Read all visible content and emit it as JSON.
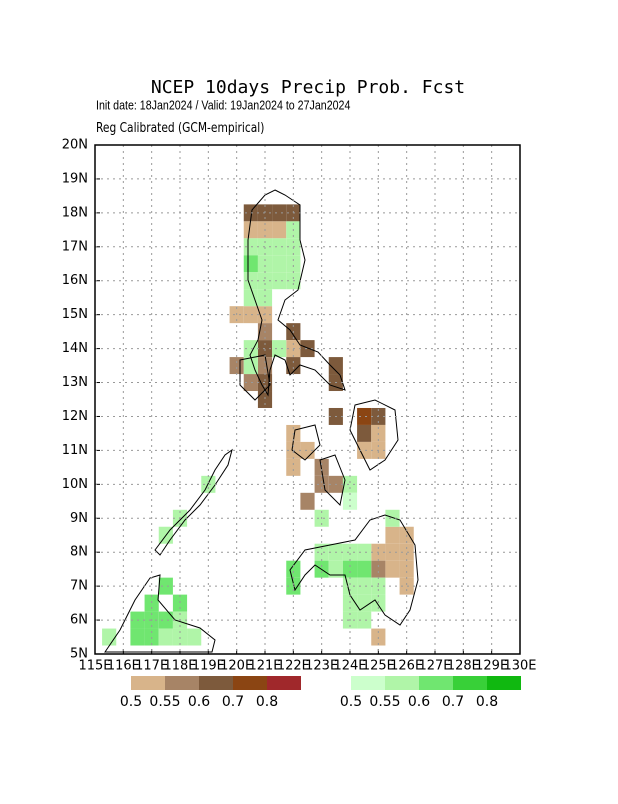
{
  "chart_data": {
    "type": "map",
    "title": "NCEP 10days Precip Prob. Fcst",
    "subtitle": "Init date: 18Jan2024 / Valid: 19Jan2024 to 27Jan2024",
    "note": "Reg Calibrated (GCM-empirical)",
    "xlim": [
      115,
      130
    ],
    "ylim": [
      5,
      20
    ],
    "grid": true,
    "xticks": [
      {
        "value": 115,
        "label": "115E"
      },
      {
        "value": 116,
        "label": "116E"
      },
      {
        "value": 117,
        "label": "117E"
      },
      {
        "value": 118,
        "label": "118E"
      },
      {
        "value": 119,
        "label": "119E"
      },
      {
        "value": 120,
        "label": "120E"
      },
      {
        "value": 121,
        "label": "121E"
      },
      {
        "value": 122,
        "label": "122E"
      },
      {
        "value": 123,
        "label": "123E"
      },
      {
        "value": 124,
        "label": "124E"
      },
      {
        "value": 125,
        "label": "125E"
      },
      {
        "value": 126,
        "label": "126E"
      },
      {
        "value": 127,
        "label": "127E"
      },
      {
        "value": 128,
        "label": "128E"
      },
      {
        "value": 129,
        "label": "129E"
      },
      {
        "value": 130,
        "label": "130E"
      }
    ],
    "yticks": [
      {
        "value": 5,
        "label": "5N"
      },
      {
        "value": 6,
        "label": "6N"
      },
      {
        "value": 7,
        "label": "7N"
      },
      {
        "value": 8,
        "label": "8N"
      },
      {
        "value": 9,
        "label": "9N"
      },
      {
        "value": 10,
        "label": "10N"
      },
      {
        "value": 11,
        "label": "11N"
      },
      {
        "value": 12,
        "label": "12N"
      },
      {
        "value": 13,
        "label": "13N"
      },
      {
        "value": 14,
        "label": "14N"
      },
      {
        "value": 15,
        "label": "15N"
      },
      {
        "value": 16,
        "label": "16N"
      },
      {
        "value": 17,
        "label": "17N"
      },
      {
        "value": 18,
        "label": "18N"
      },
      {
        "value": 19,
        "label": "19N"
      },
      {
        "value": 20,
        "label": "20N"
      }
    ],
    "dry": {
      "levels": [
        0.5,
        0.55,
        0.6,
        0.7,
        0.8
      ],
      "colors": [
        "#d8b48a",
        "#a78466",
        "#7d5a3c",
        "#8b4513",
        "#a0282b"
      ],
      "cells": [
        [
          120.5,
          18,
          0.65
        ],
        [
          121,
          18,
          0.65
        ],
        [
          121.5,
          18,
          0.65
        ],
        [
          122,
          18,
          0.65
        ],
        [
          120.5,
          17.5,
          0.52
        ],
        [
          121,
          17.5,
          0.52
        ],
        [
          121.5,
          17.5,
          0.52
        ],
        [
          120,
          15,
          0.52
        ],
        [
          120.5,
          15,
          0.52
        ],
        [
          121,
          15,
          0.52
        ],
        [
          121,
          14.5,
          0.57
        ],
        [
          122,
          14.5,
          0.65
        ],
        [
          121,
          14,
          0.65
        ],
        [
          122,
          14,
          0.52
        ],
        [
          122.5,
          14,
          0.65
        ],
        [
          120,
          13.5,
          0.57
        ],
        [
          121,
          13.5,
          0.57
        ],
        [
          122,
          13.5,
          0.65
        ],
        [
          123.5,
          13.5,
          0.65
        ],
        [
          120.5,
          13,
          0.57
        ],
        [
          121,
          13,
          0.65
        ],
        [
          123.5,
          13,
          0.65
        ],
        [
          121,
          12.5,
          0.65
        ],
        [
          123.5,
          12,
          0.65
        ],
        [
          124.5,
          12,
          0.75
        ],
        [
          125,
          12,
          0.65
        ],
        [
          122,
          11.5,
          0.52
        ],
        [
          124.5,
          11.5,
          0.65
        ],
        [
          125,
          11.5,
          0.52
        ],
        [
          122,
          11,
          0.52
        ],
        [
          122.5,
          11,
          0.52
        ],
        [
          124.5,
          11,
          0.52
        ],
        [
          125,
          11,
          0.52
        ],
        [
          122,
          10.5,
          0.52
        ],
        [
          123,
          10.5,
          0.57
        ],
        [
          123,
          10,
          0.57
        ],
        [
          123.5,
          10,
          0.57
        ],
        [
          122.5,
          9.5,
          0.57
        ],
        [
          125.5,
          8.5,
          0.52
        ],
        [
          126,
          8.5,
          0.52
        ],
        [
          125,
          8,
          0.52
        ],
        [
          125.5,
          8,
          0.52
        ],
        [
          126,
          8,
          0.52
        ],
        [
          125,
          7.5,
          0.57
        ],
        [
          125.5,
          7.5,
          0.52
        ],
        [
          126,
          7.5,
          0.52
        ],
        [
          126,
          7,
          0.52
        ],
        [
          125,
          5.5,
          0.52
        ]
      ]
    },
    "wet": {
      "levels": [
        0.5,
        0.55,
        0.6,
        0.7,
        0.8
      ],
      "colors": [
        "#ccffcc",
        "#b0f5a8",
        "#70e670",
        "#38d038",
        "#10b810"
      ],
      "cells": [
        [
          122,
          17.5,
          0.57
        ],
        [
          120.5,
          17,
          0.57
        ],
        [
          121,
          17,
          0.57
        ],
        [
          121.5,
          17,
          0.57
        ],
        [
          122,
          17,
          0.57
        ],
        [
          120.5,
          16.5,
          0.65
        ],
        [
          121,
          16.5,
          0.57
        ],
        [
          121.5,
          16.5,
          0.57
        ],
        [
          122,
          16.5,
          0.57
        ],
        [
          120.5,
          16,
          0.57
        ],
        [
          121,
          16,
          0.57
        ],
        [
          121.5,
          16,
          0.57
        ],
        [
          122,
          16,
          0.57
        ],
        [
          120.5,
          15.5,
          0.57
        ],
        [
          121,
          15.5,
          0.57
        ],
        [
          120.5,
          14,
          0.57
        ],
        [
          121.5,
          14,
          0.57
        ],
        [
          120.5,
          13.5,
          0.57
        ],
        [
          124,
          10,
          0.57
        ],
        [
          119,
          10,
          0.57
        ],
        [
          124,
          9.5,
          0.52
        ],
        [
          123,
          9,
          0.57
        ],
        [
          125.5,
          9,
          0.57
        ],
        [
          118,
          9,
          0.57
        ],
        [
          117.5,
          8.5,
          0.57
        ],
        [
          123,
          8,
          0.57
        ],
        [
          123.5,
          8,
          0.57
        ],
        [
          124,
          8,
          0.57
        ],
        [
          124.5,
          8,
          0.57
        ],
        [
          122,
          7.5,
          0.65
        ],
        [
          123,
          7.5,
          0.65
        ],
        [
          123.5,
          7.5,
          0.57
        ],
        [
          124,
          7.5,
          0.65
        ],
        [
          124.5,
          7.5,
          0.65
        ],
        [
          122,
          7,
          0.65
        ],
        [
          124,
          7,
          0.57
        ],
        [
          124.5,
          7,
          0.57
        ],
        [
          125,
          7,
          0.57
        ],
        [
          124,
          6.5,
          0.57
        ],
        [
          124.5,
          6.5,
          0.57
        ],
        [
          125,
          6.5,
          0.57
        ],
        [
          124,
          6,
          0.57
        ],
        [
          124.5,
          6,
          0.57
        ],
        [
          117.5,
          7,
          0.65
        ],
        [
          117,
          6.5,
          0.65
        ],
        [
          118,
          6.5,
          0.65
        ],
        [
          116.5,
          6,
          0.65
        ],
        [
          117,
          6,
          0.65
        ],
        [
          117.5,
          6,
          0.65
        ],
        [
          118,
          6,
          0.57
        ],
        [
          116.5,
          5.5,
          0.65
        ],
        [
          117,
          5.5,
          0.65
        ],
        [
          117.5,
          5.5,
          0.57
        ],
        [
          118,
          5.5,
          0.57
        ],
        [
          118.5,
          5.5,
          0.57
        ],
        [
          115.5,
          5.5,
          0.57
        ]
      ]
    }
  }
}
